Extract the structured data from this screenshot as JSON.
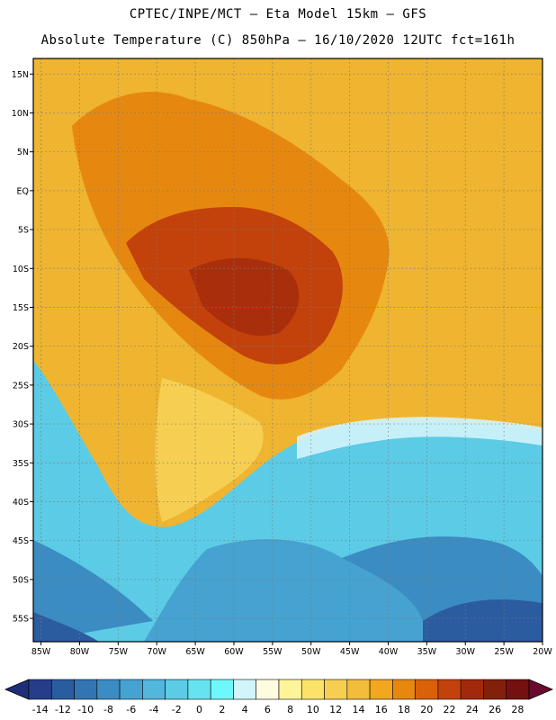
{
  "header": {
    "title_line1": "CPTEC/INPE/MCT —  Eta Model 15km — GFS",
    "title_line2": "Absolute Temperature (C) 850hPa — 16/10/2020 12UTC fct=161h"
  },
  "map": {
    "lat_labels": [
      "15N",
      "10N",
      "5N",
      "EQ",
      "5S",
      "10S",
      "15S",
      "20S",
      "25S",
      "30S",
      "35S",
      "40S",
      "45S",
      "50S",
      "55S"
    ],
    "lon_labels": [
      "85W",
      "80W",
      "75W",
      "70W",
      "65W",
      "60W",
      "55W",
      "50W",
      "45W",
      "40W",
      "35W",
      "30W",
      "25W",
      "20W"
    ],
    "lat_values": [
      15,
      10,
      5,
      0,
      -5,
      -10,
      -15,
      -20,
      -25,
      -30,
      -35,
      -40,
      -45,
      -50,
      -55
    ],
    "lon_values": [
      -85,
      -80,
      -75,
      -70,
      -65,
      -60,
      -55,
      -50,
      -45,
      -40,
      -35,
      -30,
      -25,
      -20
    ],
    "lat_range": [
      -58,
      17
    ],
    "lon_range": [
      -86,
      -20
    ],
    "grid": "dotted"
  },
  "colorbar": {
    "labels": [
      "-14",
      "-12",
      "-10",
      "-8",
      "-6",
      "-4",
      "-2",
      "0",
      "2",
      "4",
      "6",
      "8",
      "10",
      "12",
      "14",
      "16",
      "18",
      "20",
      "22",
      "24",
      "26",
      "28"
    ],
    "colors": [
      "#263e8a",
      "#2b5ca0",
      "#3375b3",
      "#3b8cc2",
      "#46a2d0",
      "#52b6dd",
      "#5ccbe6",
      "#66e2f0",
      "#6ff8fb",
      "#d2f4fb",
      "#fffbe0",
      "#fff49a",
      "#fbe36a",
      "#f6cf52",
      "#f3bc3a",
      "#f1a71f",
      "#e6880f",
      "#d9610a",
      "#c3420b",
      "#a22a0c",
      "#83200c",
      "#741010"
    ],
    "low_cap_color": "#1e2e7a",
    "high_cap_color": "#6b0a30"
  }
}
